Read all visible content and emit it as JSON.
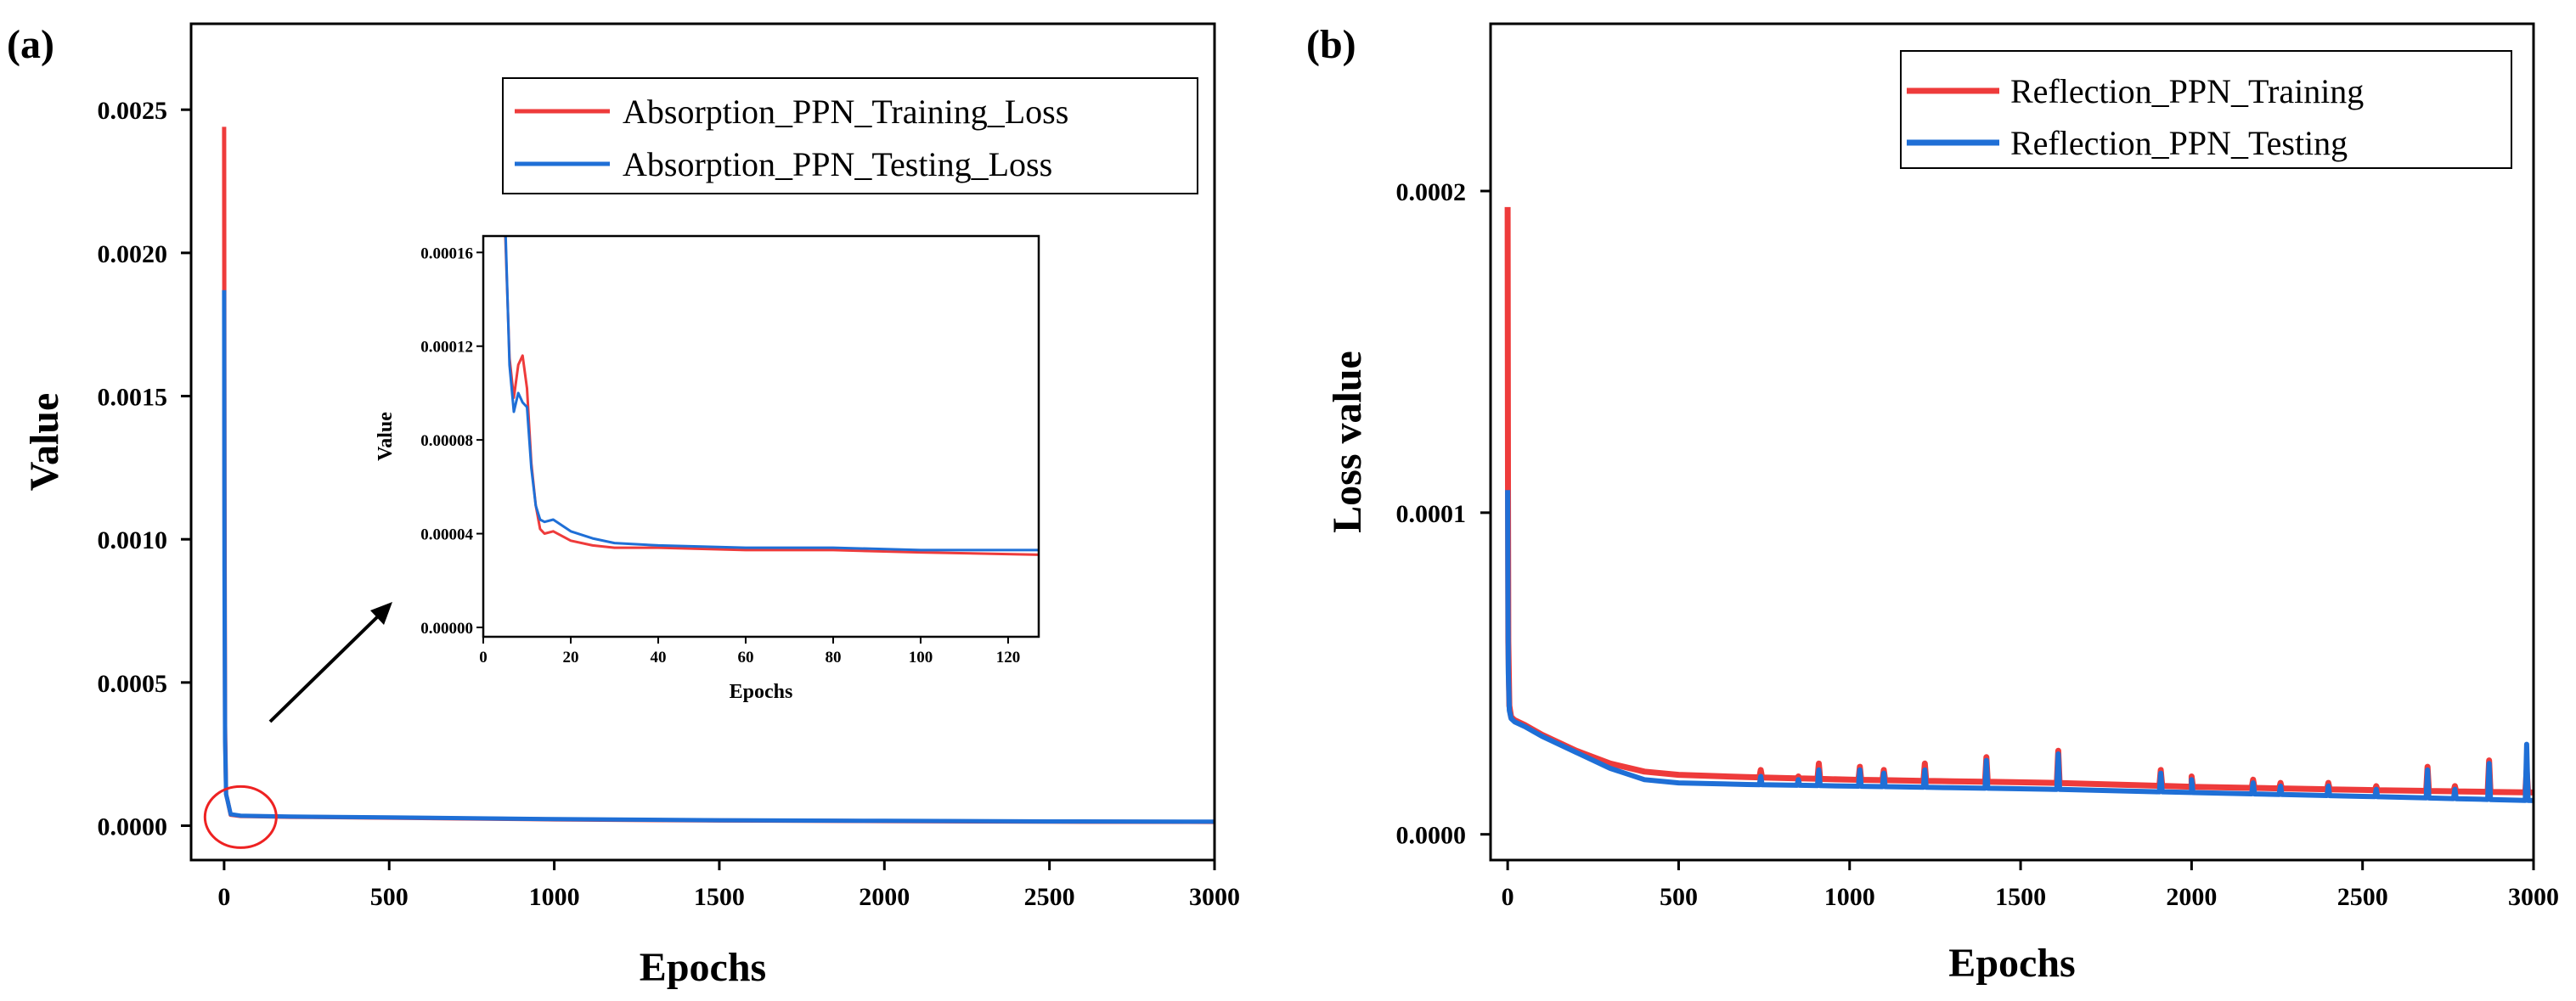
{
  "chart_data": [
    {
      "panel": "(a)",
      "type": "line",
      "xlabel": "Epochs",
      "ylabel": "Value",
      "xlim": [
        -100,
        3000
      ],
      "ylim": [
        -0.00012,
        0.0028
      ],
      "xticks": [
        "0",
        "500",
        "1000",
        "1500",
        "2000",
        "2500",
        "3000"
      ],
      "yticks": [
        "0.0000",
        "0.0005",
        "0.0010",
        "0.0015",
        "0.0020",
        "0.0025"
      ],
      "legend_position": "top-right",
      "colors": {
        "training": "#ee3b3b",
        "testing": "#1f6fd6",
        "highlight": "#ee2222"
      },
      "series": [
        {
          "name": "Absorption_PPN_Training_Loss",
          "color": "#ee3b3b",
          "x": [
            0,
            1,
            3,
            6,
            10,
            20,
            50,
            100,
            200,
            300,
            500,
            1000,
            1500,
            2000,
            2500,
            3000
          ],
          "y": [
            0.00244,
            0.0012,
            0.00035,
            0.00011,
            9e-05,
            3.8e-05,
            3.4e-05,
            3.3e-05,
            3.1e-05,
            3e-05,
            2.8e-05,
            2.2e-05,
            1.8e-05,
            1.6e-05,
            1.4e-05,
            1.3e-05
          ]
        },
        {
          "name": "Absorption_PPN_Testing_Loss",
          "color": "#1f6fd6",
          "x": [
            0,
            1,
            3,
            6,
            10,
            20,
            50,
            100,
            200,
            300,
            500,
            1000,
            1500,
            2000,
            2500,
            3000
          ],
          "y": [
            0.00187,
            0.0009,
            0.0003,
            0.00011,
            9e-05,
            4e-05,
            3.5e-05,
            3.4e-05,
            3.2e-05,
            3.1e-05,
            2.9e-05,
            2.3e-05,
            1.9e-05,
            1.7e-05,
            1.5e-05,
            1.4e-05
          ]
        }
      ],
      "annotations": [
        {
          "type": "ellipse",
          "label": "zoom region",
          "x": 50,
          "y": 3e-05
        },
        {
          "type": "arrow",
          "label": "points to inset"
        }
      ],
      "inset": {
        "xlabel": "Epochs",
        "ylabel": "Value",
        "xlim": [
          0,
          127
        ],
        "ylim": [
          -4e-06,
          0.000167
        ],
        "xticks": [
          "0",
          "20",
          "40",
          "60",
          "80",
          "100",
          "120"
        ],
        "yticks": [
          "0.00000",
          "0.00004",
          "0.00008",
          "0.00012",
          "0.00016"
        ],
        "series": [
          {
            "name": "Absorption_PPN_Training_Loss",
            "color": "#ee3b3b",
            "x": [
              5,
              6,
              7,
              8,
              9,
              10,
              11,
              12,
              13,
              14,
              16,
              20,
              25,
              30,
              40,
              60,
              80,
              100,
              127
            ],
            "y": [
              0.00017,
              0.000115,
              9.8e-05,
              0.000112,
              0.000116,
              0.000102,
              7e-05,
              5.2e-05,
              4.2e-05,
              4e-05,
              4.1e-05,
              3.7e-05,
              3.5e-05,
              3.4e-05,
              3.4e-05,
              3.3e-05,
              3.3e-05,
              3.2e-05,
              3.1e-05
            ]
          },
          {
            "name": "Absorption_PPN_Testing_Loss",
            "color": "#1f6fd6",
            "x": [
              5,
              6,
              7,
              8,
              9,
              10,
              11,
              12,
              13,
              14,
              16,
              20,
              25,
              30,
              40,
              60,
              80,
              100,
              127
            ],
            "y": [
              0.000175,
              0.000112,
              9.2e-05,
              0.0001,
              9.6e-05,
              9.4e-05,
              6.8e-05,
              5.2e-05,
              4.6e-05,
              4.5e-05,
              4.6e-05,
              4.1e-05,
              3.8e-05,
              3.6e-05,
              3.5e-05,
              3.4e-05,
              3.4e-05,
              3.3e-05,
              3.3e-05
            ]
          }
        ]
      }
    },
    {
      "panel": "(b)",
      "type": "line",
      "xlabel": "Epochs",
      "ylabel": "Loss value",
      "xlim": [
        -50,
        3000
      ],
      "ylim": [
        -8e-06,
        0.000252
      ],
      "xticks": [
        "0",
        "500",
        "1000",
        "1500",
        "2000",
        "2500",
        "3000"
      ],
      "yticks": [
        "0.0000",
        "0.0001",
        "0.0002"
      ],
      "legend_position": "top-right",
      "series": [
        {
          "name": "Reflection_PPN_Training",
          "color": "#ee3b3b",
          "x": [
            0,
            1,
            2,
            5,
            10,
            20,
            50,
            100,
            200,
            300,
            400,
            500,
            700,
            1000,
            1300,
            1600,
            2000,
            2500,
            3000
          ],
          "y": [
            0.000195,
            0.00011,
            6e-05,
            4e-05,
            3.65e-05,
            3.55e-05,
            3.4e-05,
            3.1e-05,
            2.6e-05,
            2.2e-05,
            1.95e-05,
            1.85e-05,
            1.78e-05,
            1.7e-05,
            1.65e-05,
            1.6e-05,
            1.48e-05,
            1.38e-05,
            1.3e-05
          ]
        },
        {
          "name": "Reflection_PPN_Testing",
          "color": "#1f6fd6",
          "x": [
            0,
            1,
            2,
            5,
            10,
            20,
            50,
            100,
            200,
            300,
            400,
            500,
            700,
            1000,
            1300,
            1600,
            2000,
            2500,
            3000
          ],
          "y": [
            0.000107,
            7e-05,
            5e-05,
            3.85e-05,
            3.6e-05,
            3.5e-05,
            3.35e-05,
            3.05e-05,
            2.55e-05,
            2.05e-05,
            1.7e-05,
            1.6e-05,
            1.55e-05,
            1.5e-05,
            1.45e-05,
            1.4e-05,
            1.3e-05,
            1.18e-05,
            1.05e-05
          ]
        }
      ],
      "spikes": {
        "epochs": [
          740,
          850,
          910,
          1030,
          1100,
          1220,
          1400,
          1610,
          1910,
          2000,
          2180,
          2260,
          2400,
          2540,
          2690,
          2770,
          2870,
          2980
        ],
        "training_peak": [
          2e-05,
          1.8e-05,
          2.2e-05,
          2.1e-05,
          2e-05,
          2.2e-05,
          2.4e-05,
          2.6e-05,
          2e-05,
          1.8e-05,
          1.7e-05,
          1.6e-05,
          1.6e-05,
          1.5e-05,
          2.1e-05,
          1.5e-05,
          2.3e-05,
          2e-05
        ],
        "testing_peak": [
          1.8e-05,
          1.7e-05,
          2e-05,
          2e-05,
          1.9e-05,
          2e-05,
          2.3e-05,
          2.5e-05,
          1.9e-05,
          1.7e-05,
          1.6e-05,
          1.5e-05,
          1.5e-05,
          1.4e-05,
          2e-05,
          1.4e-05,
          2.2e-05,
          2.8e-05
        ]
      }
    }
  ]
}
